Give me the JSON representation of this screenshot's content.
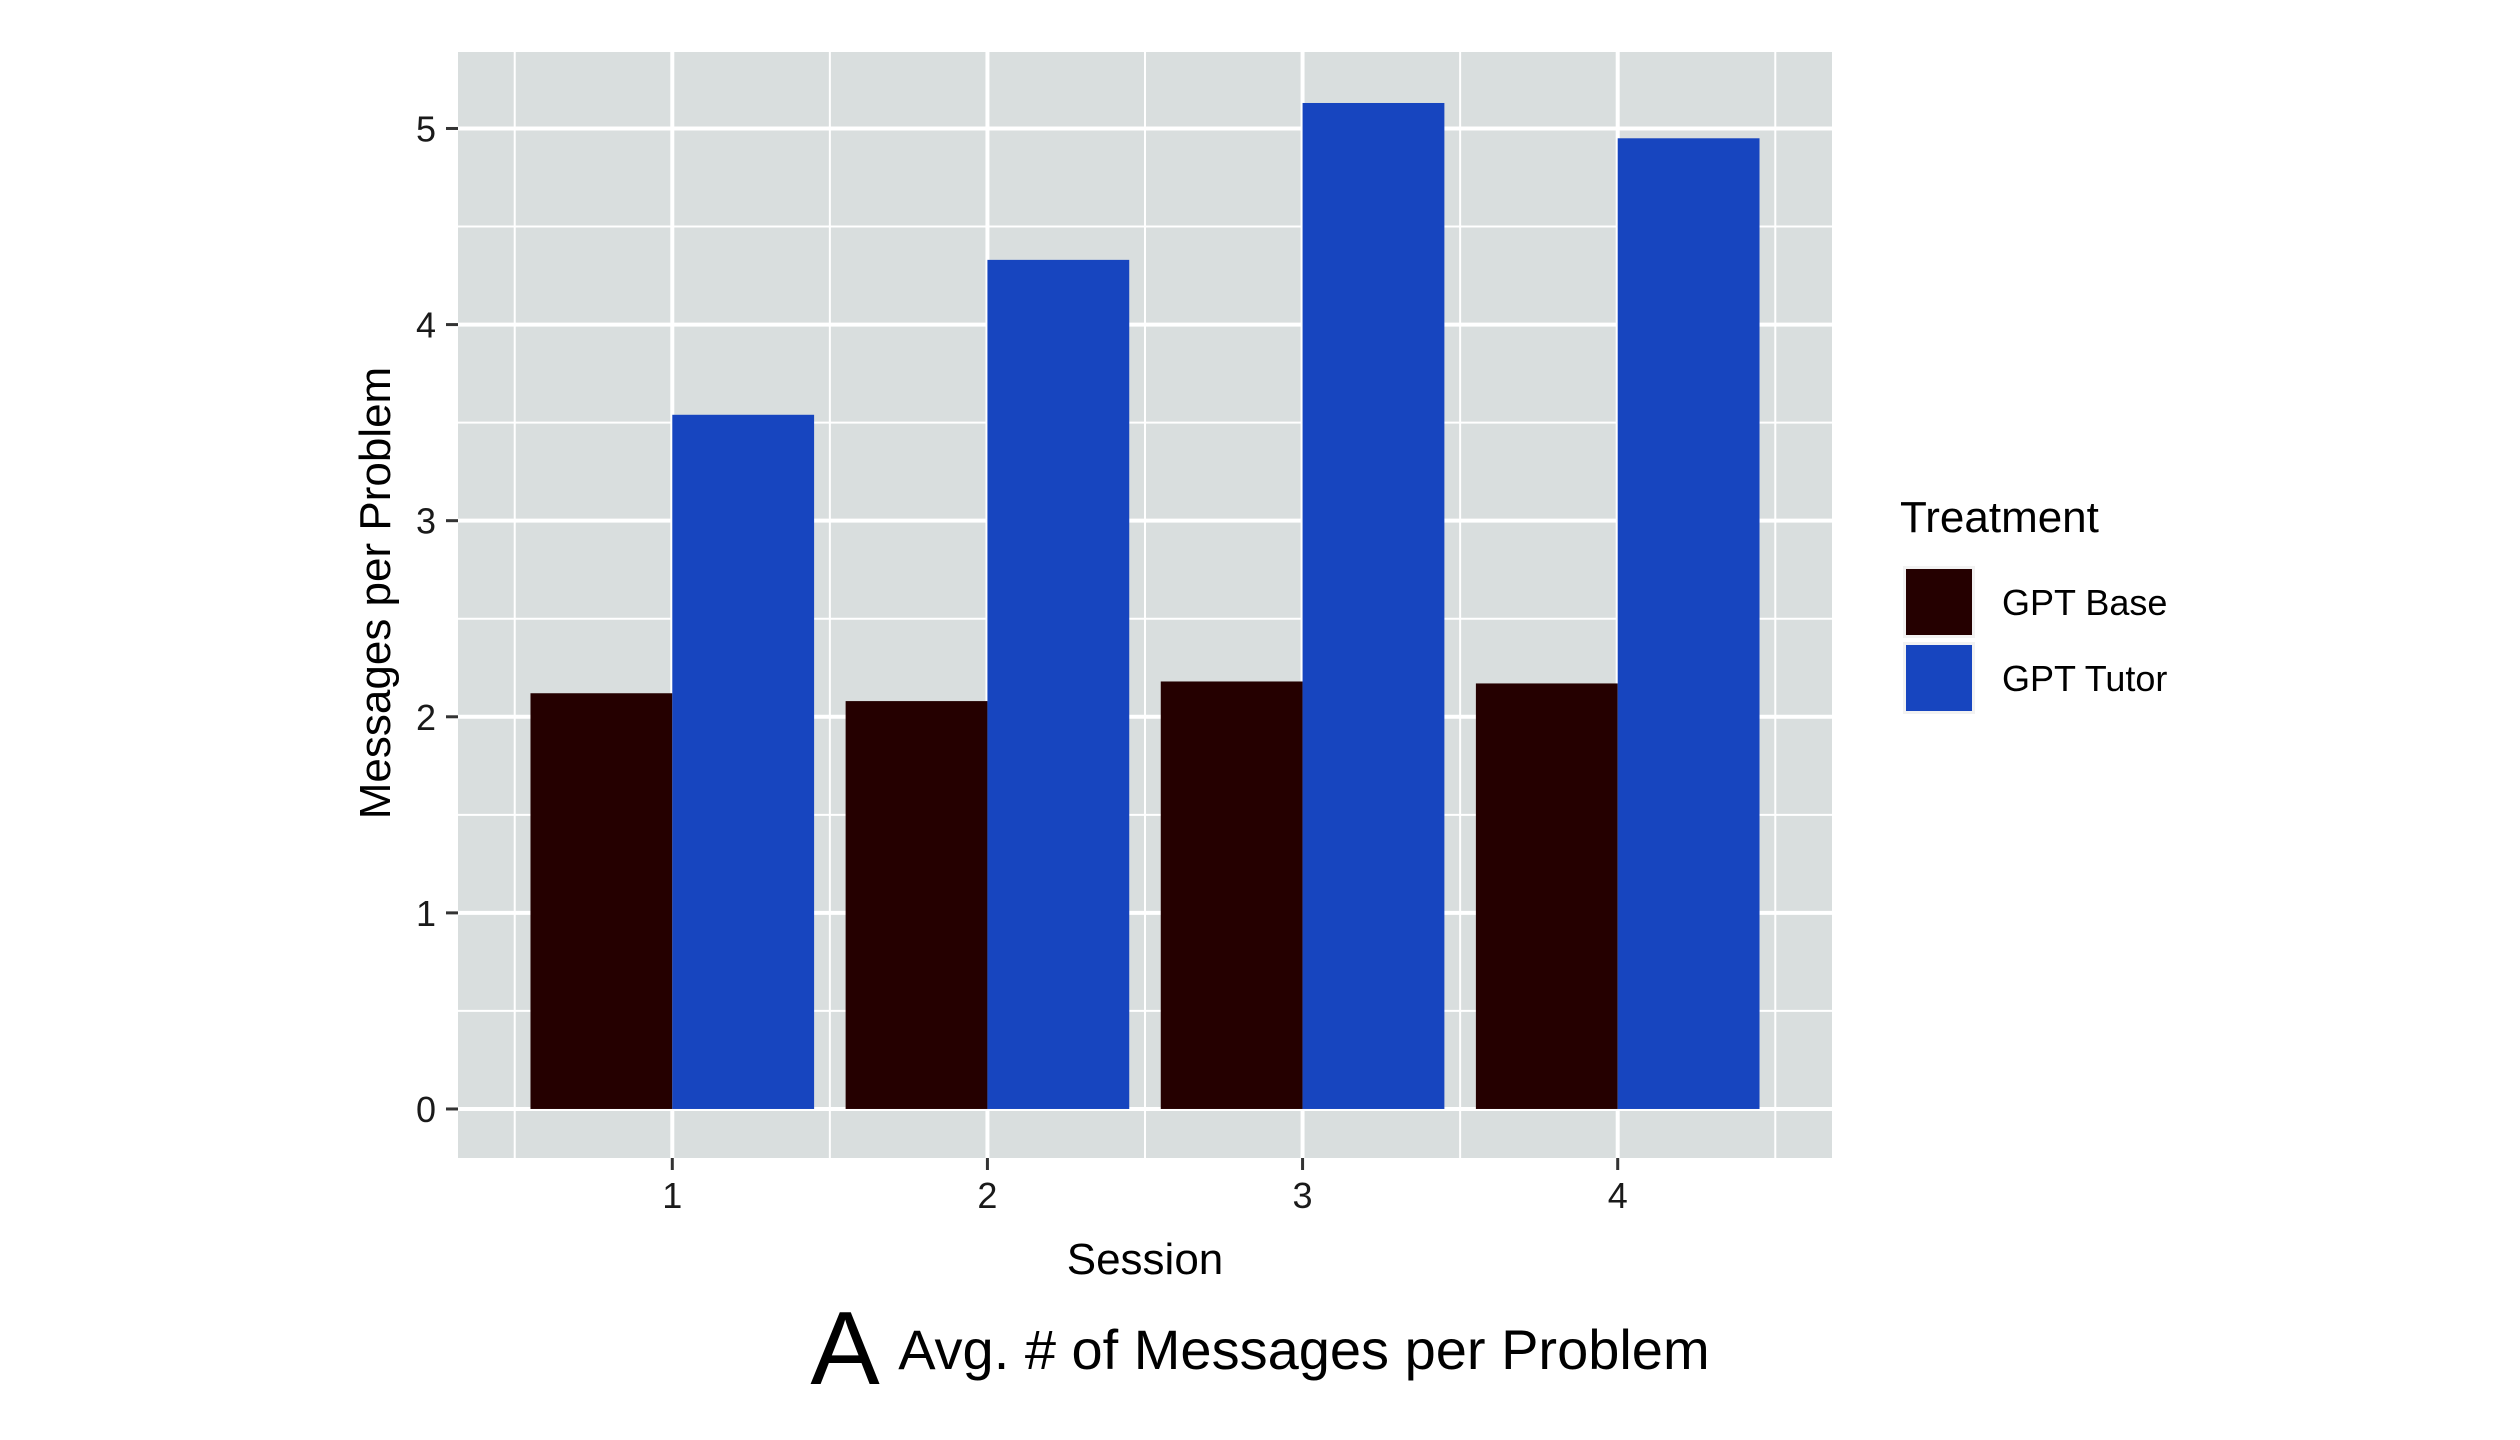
{
  "chart_data": {
    "type": "bar",
    "categories": [
      "1",
      "2",
      "3",
      "4"
    ],
    "series": [
      {
        "name": "GPT Base",
        "color": "#250000",
        "values": [
          2.12,
          2.08,
          2.18,
          2.17
        ]
      },
      {
        "name": "GPT Tutor",
        "color": "#1745BF",
        "values": [
          3.54,
          4.33,
          5.13,
          4.95
        ]
      }
    ],
    "xlabel": "Session",
    "ylabel": "Messages per Problem",
    "ylim": [
      -0.25,
      5.39
    ],
    "yticks": [
      0,
      1,
      2,
      3,
      4,
      5
    ],
    "legend_title": "Treatment",
    "legend_position": "right",
    "grid": true,
    "panel_background": "#D9DEDE"
  },
  "caption": {
    "letter": "A",
    "text": "Avg. # of Messages per Problem"
  }
}
